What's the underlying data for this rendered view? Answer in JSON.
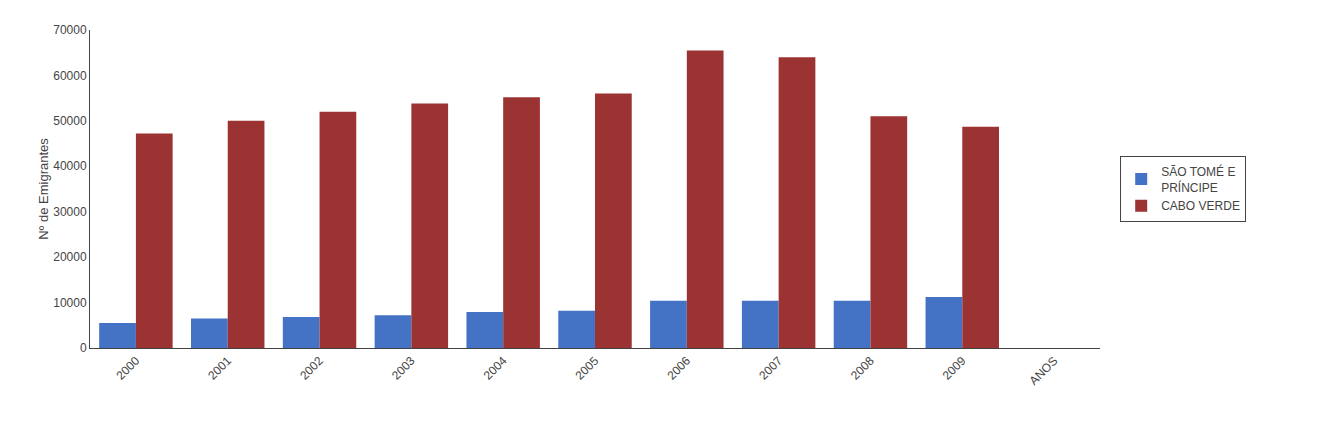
{
  "chart_data": {
    "type": "bar",
    "ylabel": "Nº de Emigrantes",
    "categories": [
      "2000",
      "2001",
      "2002",
      "2003",
      "2004",
      "2005",
      "2006",
      "2007",
      "2008",
      "2009",
      "ANOS"
    ],
    "series": [
      {
        "name": "SÃO TOMÉ E\nPRÍNCIPE",
        "color": "#4472C4",
        "values": [
          5500,
          6500,
          6800,
          7200,
          7900,
          8200,
          10400,
          10400,
          10400,
          11200,
          null
        ]
      },
      {
        "name": "CABO VERDE",
        "color": "#9B3333",
        "values": [
          47200,
          50000,
          52000,
          53800,
          55200,
          56000,
          65500,
          64000,
          51000,
          48700,
          null
        ]
      }
    ],
    "ylim": [
      0,
      70000
    ],
    "yticks": [
      0,
      10000,
      20000,
      30000,
      40000,
      50000,
      60000,
      70000
    ],
    "grid": false,
    "legend": "right"
  }
}
